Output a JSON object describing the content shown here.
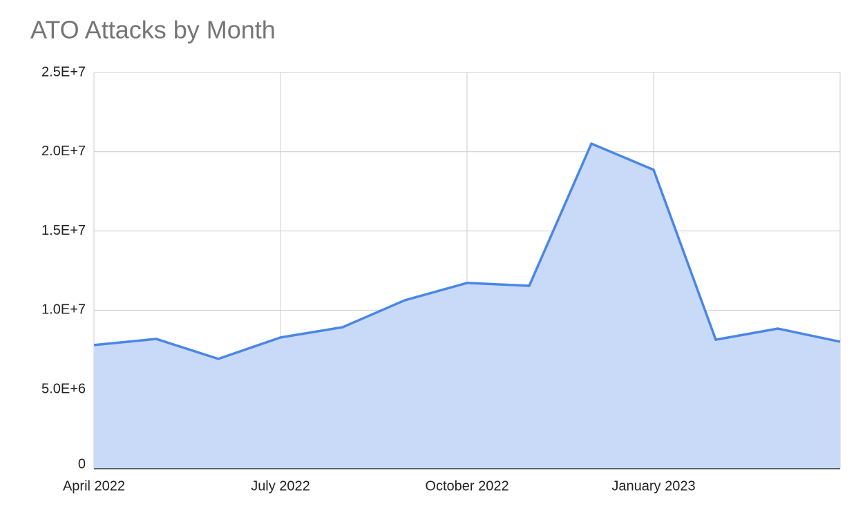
{
  "chart_data": {
    "type": "area",
    "title": "ATO Attacks by Month",
    "categories": [
      "April 2022",
      null,
      null,
      "July 2022",
      null,
      null,
      "October 2022",
      null,
      null,
      "January 2023",
      null,
      null,
      null
    ],
    "values": [
      7800000,
      8190000,
      6930000,
      8280000,
      8930000,
      10630000,
      11720000,
      11540000,
      20510000,
      18860000,
      8140000,
      8840000,
      8010000
    ],
    "color": "#4a86e8",
    "fill": "#c9daf8",
    "ylim": [
      0,
      25000000
    ],
    "yticks": [
      0,
      {
        "value": 5000000,
        "label": "5.0E+6"
      },
      {
        "value": 10000000,
        "label": "1.0E+7"
      },
      {
        "value": 15000000,
        "label": "1.5E+7"
      },
      {
        "value": 20000000,
        "label": "2.0E+7"
      },
      {
        "value": 25000000,
        "label": "2.5E+7"
      }
    ],
    "grid": true
  }
}
